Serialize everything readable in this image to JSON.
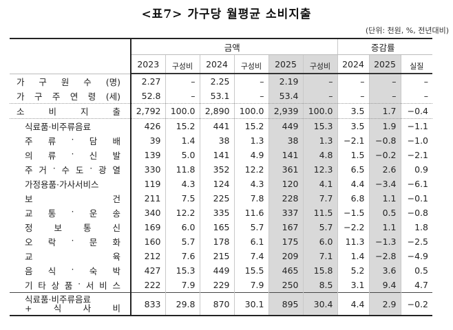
{
  "title": "<표7> 가구당 월평균 소비지출",
  "unit_note": "(단위: 천원, %, 전년대비)",
  "header": {
    "group_amount": "금액",
    "group_change": "증감률",
    "columns": [
      "2023",
      "구성비",
      "2024",
      "구성비",
      "2025",
      "구성비",
      "2024",
      "2025",
      "실질"
    ]
  },
  "rows": [
    {
      "label": [
        "가",
        "구",
        "원",
        "수",
        "(명)"
      ],
      "values": [
        "2.27",
        "–",
        "2.25",
        "–",
        "2.19",
        "–",
        "–",
        "–",
        "–"
      ]
    },
    {
      "label": [
        "가",
        "구",
        "주",
        "연",
        "령",
        "(세)"
      ],
      "values": [
        "52.8",
        "–",
        "53.1",
        "–",
        "53.4",
        "–",
        "–",
        "–",
        "–"
      ]
    },
    {
      "label": [
        "소",
        "비",
        "지",
        "출"
      ],
      "values": [
        "2,792",
        "100.0",
        "2,890",
        "100.0",
        "2,939",
        "100.0",
        "3.5",
        "1.7",
        "−0.4"
      ]
    },
    {
      "label": [
        "식료품·비주류음료"
      ],
      "values": [
        "426",
        "15.2",
        "441",
        "15.2",
        "449",
        "15.3",
        "3.5",
        "1.9",
        "−1.1"
      ]
    },
    {
      "label": [
        "주",
        "류",
        "·",
        "담",
        "배"
      ],
      "values": [
        "39",
        "1.4",
        "38",
        "1.3",
        "38",
        "1.3",
        "−2.1",
        "−0.8",
        "−1.0"
      ]
    },
    {
      "label": [
        "의",
        "류",
        "·",
        "신",
        "발"
      ],
      "values": [
        "139",
        "5.0",
        "141",
        "4.9",
        "141",
        "4.8",
        "1.5",
        "−0.2",
        "−2.1"
      ]
    },
    {
      "label": [
        "주",
        "거",
        "·",
        "수",
        "도",
        "·",
        "광",
        "열"
      ],
      "values": [
        "330",
        "11.8",
        "352",
        "12.2",
        "361",
        "12.3",
        "6.5",
        "2.6",
        "0.9"
      ]
    },
    {
      "label": [
        "가정용품·가사서비스"
      ],
      "values": [
        "119",
        "4.3",
        "124",
        "4.3",
        "120",
        "4.1",
        "4.4",
        "−3.4",
        "−6.1"
      ]
    },
    {
      "label": [
        "보",
        "건"
      ],
      "values": [
        "211",
        "7.5",
        "225",
        "7.8",
        "228",
        "7.7",
        "6.8",
        "1.1",
        "−0.1"
      ]
    },
    {
      "label": [
        "교",
        "통",
        "·",
        "운",
        "송"
      ],
      "values": [
        "340",
        "12.2",
        "335",
        "11.6",
        "337",
        "11.5",
        "−1.5",
        "0.5",
        "−0.8"
      ]
    },
    {
      "label": [
        "정",
        "보",
        "통",
        "신"
      ],
      "values": [
        "169",
        "6.0",
        "165",
        "5.7",
        "167",
        "5.7",
        "−2.2",
        "1.1",
        "1.8"
      ]
    },
    {
      "label": [
        "오",
        "락",
        "·",
        "문",
        "화"
      ],
      "values": [
        "160",
        "5.7",
        "178",
        "6.1",
        "175",
        "6.0",
        "11.3",
        "−1.3",
        "−2.5"
      ]
    },
    {
      "label": [
        "교",
        "육"
      ],
      "values": [
        "212",
        "7.6",
        "215",
        "7.4",
        "209",
        "7.1",
        "1.4",
        "−2.8",
        "−4.9"
      ]
    },
    {
      "label": [
        "음",
        "식",
        "·",
        "숙",
        "박"
      ],
      "values": [
        "427",
        "15.3",
        "449",
        "15.5",
        "465",
        "15.8",
        "5.2",
        "3.6",
        "0.5"
      ]
    },
    {
      "label": [
        "기",
        "타",
        "상",
        "품",
        "·",
        "서",
        "비",
        "스"
      ],
      "values": [
        "222",
        "7.9",
        "229",
        "7.9",
        "250",
        "8.5",
        "3.1",
        "9.4",
        "4.7"
      ]
    }
  ],
  "footer_row": {
    "label_line1": "식료품·비주류음료",
    "label_line2": [
      "+",
      "식",
      "사",
      "비"
    ],
    "values": [
      "833",
      "29.8",
      "870",
      "30.1",
      "895",
      "30.4",
      "4.4",
      "2.9",
      "−0.2"
    ]
  }
}
